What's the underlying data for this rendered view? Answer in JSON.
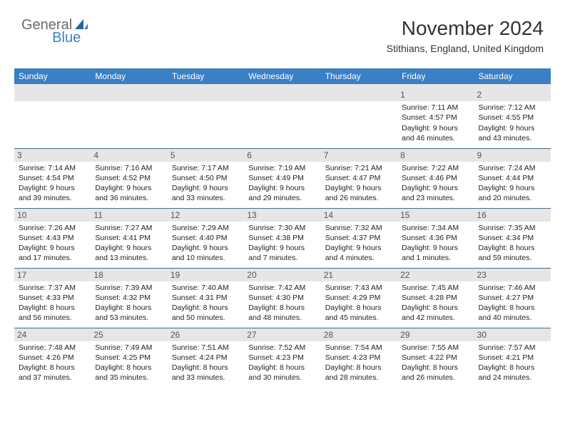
{
  "logo": {
    "general": "General",
    "blue": "Blue"
  },
  "title": "November 2024",
  "location": "Stithians, England, United Kingdom",
  "style": {
    "header_bg": "#3b7fc4",
    "header_text": "#ffffff",
    "border_color": "#4a6a8a",
    "daynum_bg": "#e6e6e6",
    "body_text": "#222222",
    "month_title_fontsize": 28,
    "location_fontsize": 14,
    "weekday_fontsize": 12,
    "cell_fontsize": 10.5
  },
  "weekdays": [
    "Sunday",
    "Monday",
    "Tuesday",
    "Wednesday",
    "Thursday",
    "Friday",
    "Saturday"
  ],
  "days": {
    "1": {
      "sunrise": "7:11 AM",
      "sunset": "4:57 PM",
      "daylight_h": 9,
      "daylight_m": 46
    },
    "2": {
      "sunrise": "7:12 AM",
      "sunset": "4:55 PM",
      "daylight_h": 9,
      "daylight_m": 43
    },
    "3": {
      "sunrise": "7:14 AM",
      "sunset": "4:54 PM",
      "daylight_h": 9,
      "daylight_m": 39
    },
    "4": {
      "sunrise": "7:16 AM",
      "sunset": "4:52 PM",
      "daylight_h": 9,
      "daylight_m": 36
    },
    "5": {
      "sunrise": "7:17 AM",
      "sunset": "4:50 PM",
      "daylight_h": 9,
      "daylight_m": 33
    },
    "6": {
      "sunrise": "7:19 AM",
      "sunset": "4:49 PM",
      "daylight_h": 9,
      "daylight_m": 29
    },
    "7": {
      "sunrise": "7:21 AM",
      "sunset": "4:47 PM",
      "daylight_h": 9,
      "daylight_m": 26
    },
    "8": {
      "sunrise": "7:22 AM",
      "sunset": "4:46 PM",
      "daylight_h": 9,
      "daylight_m": 23
    },
    "9": {
      "sunrise": "7:24 AM",
      "sunset": "4:44 PM",
      "daylight_h": 9,
      "daylight_m": 20
    },
    "10": {
      "sunrise": "7:26 AM",
      "sunset": "4:43 PM",
      "daylight_h": 9,
      "daylight_m": 17
    },
    "11": {
      "sunrise": "7:27 AM",
      "sunset": "4:41 PM",
      "daylight_h": 9,
      "daylight_m": 13
    },
    "12": {
      "sunrise": "7:29 AM",
      "sunset": "4:40 PM",
      "daylight_h": 9,
      "daylight_m": 10
    },
    "13": {
      "sunrise": "7:30 AM",
      "sunset": "4:38 PM",
      "daylight_h": 9,
      "daylight_m": 7
    },
    "14": {
      "sunrise": "7:32 AM",
      "sunset": "4:37 PM",
      "daylight_h": 9,
      "daylight_m": 4
    },
    "15": {
      "sunrise": "7:34 AM",
      "sunset": "4:36 PM",
      "daylight_h": 9,
      "daylight_m": 1
    },
    "16": {
      "sunrise": "7:35 AM",
      "sunset": "4:34 PM",
      "daylight_h": 8,
      "daylight_m": 59
    },
    "17": {
      "sunrise": "7:37 AM",
      "sunset": "4:33 PM",
      "daylight_h": 8,
      "daylight_m": 56
    },
    "18": {
      "sunrise": "7:39 AM",
      "sunset": "4:32 PM",
      "daylight_h": 8,
      "daylight_m": 53
    },
    "19": {
      "sunrise": "7:40 AM",
      "sunset": "4:31 PM",
      "daylight_h": 8,
      "daylight_m": 50
    },
    "20": {
      "sunrise": "7:42 AM",
      "sunset": "4:30 PM",
      "daylight_h": 8,
      "daylight_m": 48
    },
    "21": {
      "sunrise": "7:43 AM",
      "sunset": "4:29 PM",
      "daylight_h": 8,
      "daylight_m": 45
    },
    "22": {
      "sunrise": "7:45 AM",
      "sunset": "4:28 PM",
      "daylight_h": 8,
      "daylight_m": 42
    },
    "23": {
      "sunrise": "7:46 AM",
      "sunset": "4:27 PM",
      "daylight_h": 8,
      "daylight_m": 40
    },
    "24": {
      "sunrise": "7:48 AM",
      "sunset": "4:26 PM",
      "daylight_h": 8,
      "daylight_m": 37
    },
    "25": {
      "sunrise": "7:49 AM",
      "sunset": "4:25 PM",
      "daylight_h": 8,
      "daylight_m": 35
    },
    "26": {
      "sunrise": "7:51 AM",
      "sunset": "4:24 PM",
      "daylight_h": 8,
      "daylight_m": 33
    },
    "27": {
      "sunrise": "7:52 AM",
      "sunset": "4:23 PM",
      "daylight_h": 8,
      "daylight_m": 30
    },
    "28": {
      "sunrise": "7:54 AM",
      "sunset": "4:23 PM",
      "daylight_h": 8,
      "daylight_m": 28
    },
    "29": {
      "sunrise": "7:55 AM",
      "sunset": "4:22 PM",
      "daylight_h": 8,
      "daylight_m": 26
    },
    "30": {
      "sunrise": "7:57 AM",
      "sunset": "4:21 PM",
      "daylight_h": 8,
      "daylight_m": 24
    }
  },
  "grid": [
    [
      null,
      null,
      null,
      null,
      null,
      "1",
      "2"
    ],
    [
      "3",
      "4",
      "5",
      "6",
      "7",
      "8",
      "9"
    ],
    [
      "10",
      "11",
      "12",
      "13",
      "14",
      "15",
      "16"
    ],
    [
      "17",
      "18",
      "19",
      "20",
      "21",
      "22",
      "23"
    ],
    [
      "24",
      "25",
      "26",
      "27",
      "28",
      "29",
      "30"
    ]
  ],
  "labels": {
    "sunrise_prefix": "Sunrise: ",
    "sunset_prefix": "Sunset: ",
    "daylight_prefix": "Daylight: ",
    "hours_word": " hours",
    "and_word": "and ",
    "minutes_word": " minutes."
  }
}
